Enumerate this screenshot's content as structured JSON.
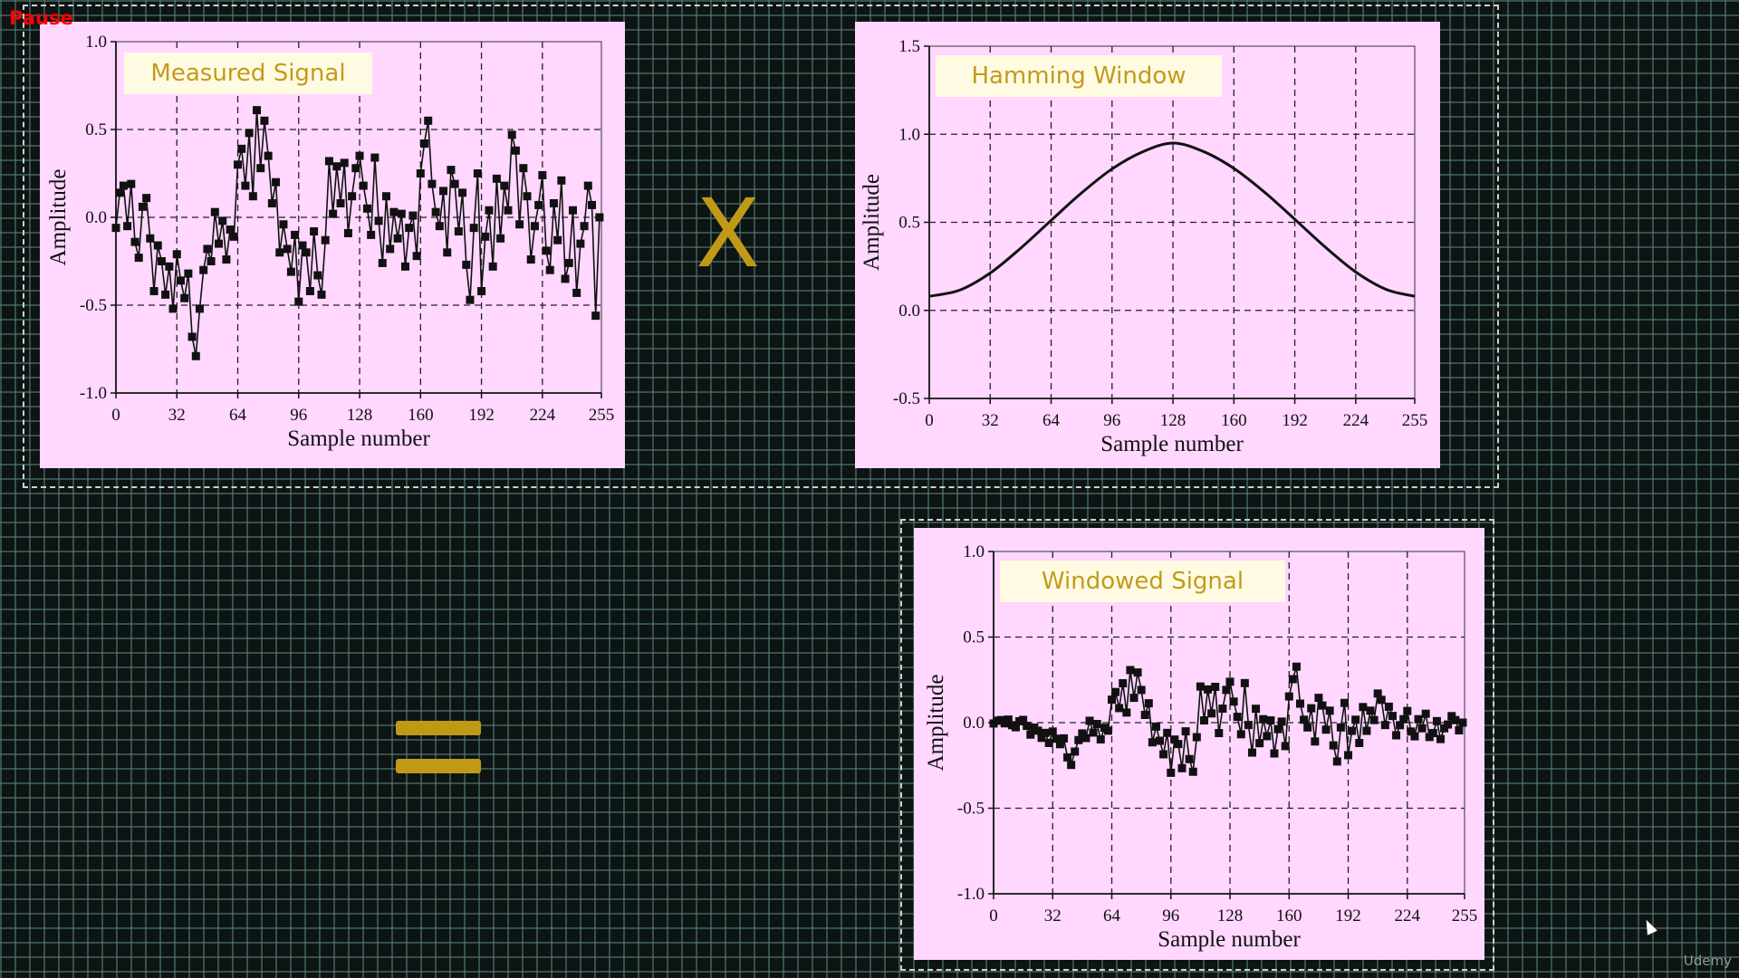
{
  "overlay": {
    "status": "Pause",
    "watermark": "Udemy"
  },
  "operators": {
    "multiply": "X"
  },
  "chart_data": [
    {
      "id": "measured",
      "type": "scatter",
      "title": "Measured Signal",
      "xlabel": "Sample number",
      "ylabel": "Amplitude",
      "xlim": [
        0,
        255
      ],
      "ylim": [
        -1.0,
        1.0
      ],
      "xticks": [
        "0",
        "32",
        "64",
        "96",
        "128",
        "160",
        "192",
        "224",
        "255"
      ],
      "yticks": [
        "1.0",
        "0.5",
        "0.0",
        "-0.5",
        "-1.0"
      ],
      "grid": true,
      "connected": true,
      "marker": "square",
      "x_start": 0,
      "x_step": 2,
      "values": [
        -0.06,
        0.14,
        0.18,
        -0.05,
        0.19,
        -0.14,
        -0.23,
        0.06,
        0.11,
        -0.12,
        -0.42,
        -0.16,
        -0.25,
        -0.44,
        -0.28,
        -0.52,
        -0.21,
        -0.36,
        -0.46,
        -0.32,
        -0.68,
        -0.79,
        -0.52,
        -0.3,
        -0.18,
        -0.25,
        0.03,
        -0.15,
        -0.02,
        -0.24,
        -0.07,
        -0.11,
        0.3,
        0.39,
        0.18,
        0.48,
        0.12,
        0.61,
        0.28,
        0.55,
        0.35,
        0.08,
        0.2,
        -0.2,
        -0.04,
        -0.18,
        -0.31,
        -0.1,
        -0.48,
        -0.16,
        -0.2,
        -0.42,
        -0.08,
        -0.33,
        -0.44,
        -0.13,
        0.32,
        0.02,
        0.29,
        0.08,
        0.31,
        -0.09,
        0.12,
        0.28,
        0.35,
        0.18,
        0.05,
        -0.1,
        0.34,
        -0.02,
        -0.26,
        0.12,
        -0.18,
        0.03,
        -0.12,
        0.02,
        -0.28,
        -0.06,
        0.01,
        -0.22,
        0.25,
        0.42,
        0.55,
        0.19,
        0.03,
        -0.05,
        0.15,
        -0.2,
        0.27,
        0.19,
        -0.08,
        0.14,
        -0.27,
        -0.47,
        -0.06,
        0.25,
        -0.42,
        -0.11,
        0.04,
        -0.28,
        0.22,
        -0.12,
        0.18,
        0.04,
        0.47,
        0.38,
        -0.04,
        0.28,
        0.12,
        -0.24,
        -0.05,
        0.07,
        0.24,
        -0.19,
        -0.3,
        0.08,
        -0.13,
        0.21,
        -0.35,
        -0.26,
        0.04,
        -0.43,
        -0.15,
        -0.05,
        0.18,
        0.07,
        -0.56,
        0.0
      ]
    },
    {
      "id": "hamming",
      "type": "line",
      "title": "Hamming Window",
      "xlabel": "Sample number",
      "ylabel": "Amplitude",
      "xlim": [
        0,
        255
      ],
      "ylim": [
        -0.5,
        1.5
      ],
      "xticks": [
        "0",
        "32",
        "64",
        "96",
        "128",
        "160",
        "192",
        "224",
        "255"
      ],
      "yticks": [
        "1.5",
        "1.0",
        "0.5",
        "0.0",
        "-0.5"
      ],
      "grid": true,
      "x": [
        0,
        16,
        32,
        48,
        64,
        80,
        96,
        112,
        128,
        144,
        160,
        176,
        192,
        208,
        224,
        240,
        255
      ],
      "values": [
        0.08,
        0.115,
        0.212,
        0.353,
        0.511,
        0.667,
        0.803,
        0.9,
        0.95,
        0.902,
        0.806,
        0.672,
        0.517,
        0.359,
        0.218,
        0.119,
        0.08
      ]
    },
    {
      "id": "windowed",
      "type": "scatter",
      "title": "Windowed Signal",
      "xlabel": "Sample number",
      "ylabel": "Amplitude",
      "xlim": [
        0,
        255
      ],
      "ylim": [
        -1.0,
        1.0
      ],
      "xticks": [
        "0",
        "32",
        "64",
        "96",
        "128",
        "160",
        "192",
        "224",
        "255"
      ],
      "yticks": [
        "1.0",
        "0.5",
        "0.0",
        "-0.5",
        "-1.0"
      ],
      "grid": true,
      "connected": true,
      "marker": "square",
      "x_start": 0,
      "x_step": 2,
      "values": [
        -0.005,
        0.011,
        0.015,
        -0.004,
        0.018,
        -0.015,
        -0.027,
        0.008,
        0.016,
        -0.019,
        -0.07,
        -0.029,
        -0.047,
        -0.089,
        -0.06,
        -0.119,
        -0.052,
        -0.094,
        -0.126,
        -0.092,
        -0.203,
        -0.247,
        -0.169,
        -0.102,
        -0.063,
        -0.09,
        0.011,
        -0.058,
        -0.008,
        -0.098,
        -0.03,
        -0.047,
        0.134,
        0.179,
        0.085,
        0.23,
        0.059,
        0.307,
        0.145,
        0.293,
        0.191,
        0.045,
        0.113,
        -0.115,
        -0.023,
        -0.106,
        -0.185,
        -0.06,
        -0.293,
        -0.099,
        -0.125,
        -0.266,
        -0.051,
        -0.213,
        -0.287,
        -0.085,
        0.211,
        0.013,
        0.194,
        0.054,
        0.209,
        -0.061,
        0.082,
        0.191,
        0.239,
        0.123,
        0.034,
        -0.068,
        0.231,
        -0.014,
        -0.175,
        0.081,
        -0.12,
        0.02,
        -0.079,
        0.013,
        -0.18,
        -0.038,
        0.006,
        -0.137,
        0.153,
        0.254,
        0.327,
        0.111,
        0.017,
        -0.028,
        0.084,
        -0.11,
        0.145,
        0.1,
        -0.041,
        0.07,
        -0.133,
        -0.227,
        -0.028,
        0.115,
        -0.19,
        -0.048,
        0.017,
        -0.119,
        0.091,
        -0.048,
        0.07,
        0.015,
        0.17,
        0.133,
        -0.014,
        0.093,
        0.039,
        -0.074,
        -0.015,
        0.02,
        0.068,
        -0.052,
        -0.08,
        0.02,
        -0.033,
        0.052,
        -0.084,
        -0.061,
        0.009,
        -0.096,
        -0.033,
        -0.011,
        0.038,
        0.015,
        -0.045,
        0.0
      ]
    }
  ]
}
